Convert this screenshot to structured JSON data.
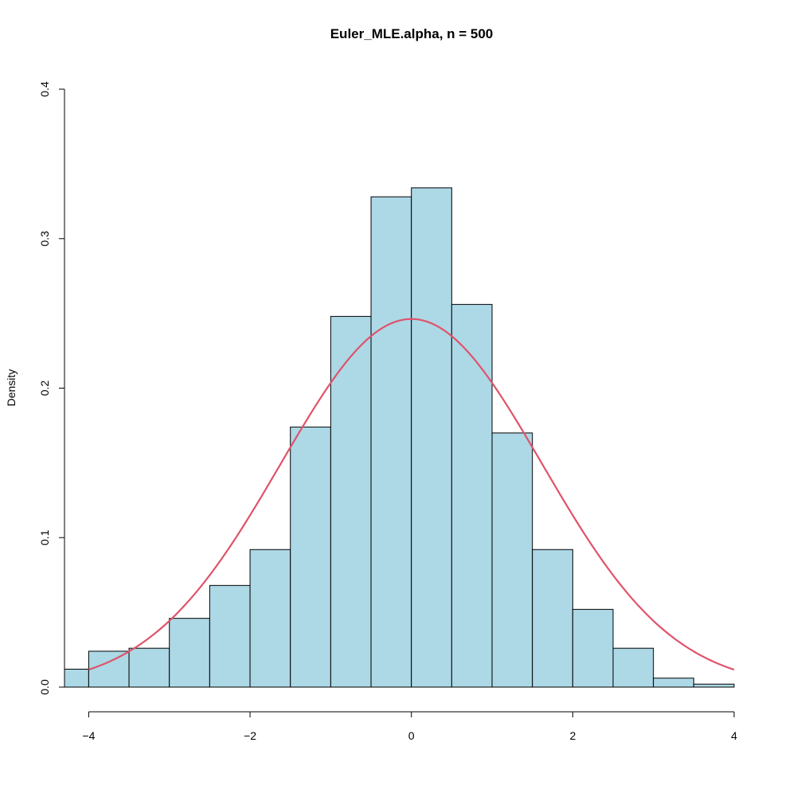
{
  "chart_data": {
    "type": "histogram",
    "title": "Euler_MLE.alpha, n = 500",
    "xlabel": "",
    "ylabel": "Density",
    "xlim": [
      -4.3,
      4.0
    ],
    "ylim": [
      0,
      0.4
    ],
    "x_ticks": [
      -4,
      -2,
      0,
      2,
      4
    ],
    "x_tick_labels": [
      "−4",
      "−2",
      "0",
      "2",
      "4"
    ],
    "y_ticks": [
      0.0,
      0.1,
      0.2,
      0.3,
      0.4
    ],
    "y_tick_labels": [
      "0.0",
      "0.1",
      "0.2",
      "0.3",
      "0.4"
    ],
    "bins": [
      {
        "x0": -4.5,
        "x1": -4.0,
        "density": 0.012
      },
      {
        "x0": -4.0,
        "x1": -3.5,
        "density": 0.024
      },
      {
        "x0": -3.5,
        "x1": -3.0,
        "density": 0.026
      },
      {
        "x0": -3.0,
        "x1": -2.5,
        "density": 0.046
      },
      {
        "x0": -2.5,
        "x1": -2.0,
        "density": 0.068
      },
      {
        "x0": -2.0,
        "x1": -1.5,
        "density": 0.092
      },
      {
        "x0": -1.5,
        "x1": -1.0,
        "density": 0.174
      },
      {
        "x0": -1.0,
        "x1": -0.5,
        "density": 0.248
      },
      {
        "x0": -0.5,
        "x1": 0.0,
        "density": 0.328
      },
      {
        "x0": 0.0,
        "x1": 0.5,
        "density": 0.334
      },
      {
        "x0": 0.5,
        "x1": 1.0,
        "density": 0.256
      },
      {
        "x0": 1.0,
        "x1": 1.5,
        "density": 0.17
      },
      {
        "x0": 1.5,
        "x1": 2.0,
        "density": 0.092
      },
      {
        "x0": 2.0,
        "x1": 2.5,
        "density": 0.052
      },
      {
        "x0": 2.5,
        "x1": 3.0,
        "density": 0.026
      },
      {
        "x0": 3.0,
        "x1": 3.5,
        "density": 0.006
      },
      {
        "x0": 3.5,
        "x1": 4.0,
        "density": 0.002
      }
    ],
    "density_curve": {
      "type": "normal",
      "mean": 0,
      "sd": 1.62,
      "x_range": [
        -4,
        4
      ]
    },
    "colors": {
      "bar_fill": "#add8e6",
      "bar_stroke": "#000000",
      "curve": "#df536b"
    }
  }
}
